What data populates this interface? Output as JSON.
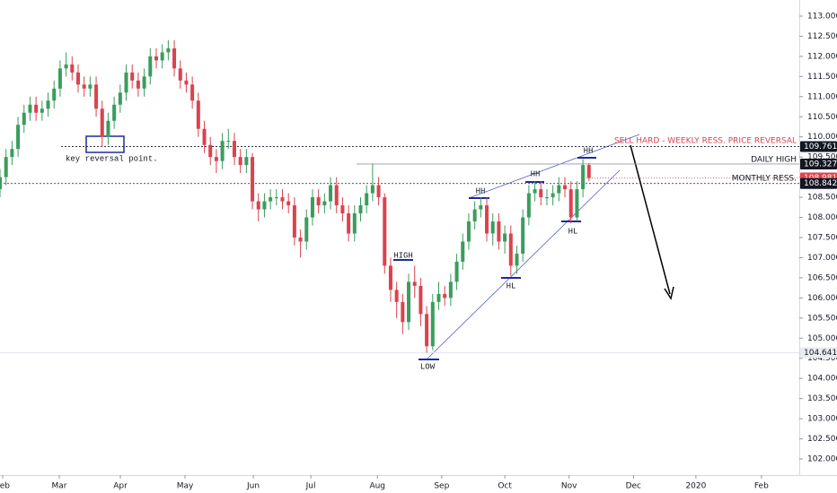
{
  "chart_data": {
    "type": "candlestick",
    "up_color": "#3a9d5d",
    "down_color": "#d9434f",
    "xlim": [
      0,
      133
    ],
    "xticks": [
      {
        "value": 0.45,
        "label": "Feb"
      },
      {
        "value": 9.86,
        "label": "Mar"
      },
      {
        "value": 20.03,
        "label": "Apr"
      },
      {
        "value": 30.79,
        "label": "May"
      },
      {
        "value": 42.15,
        "label": "Jun"
      },
      {
        "value": 51.72,
        "label": "Jul"
      },
      {
        "value": 62.8,
        "label": "Aug"
      },
      {
        "value": 73.5,
        "label": "Sep"
      },
      {
        "value": 84.0,
        "label": "Oct"
      },
      {
        "value": 94.7,
        "label": "Nov"
      },
      {
        "value": 105.4,
        "label": "Dec"
      },
      {
        "value": 115.8,
        "label": "2020"
      },
      {
        "value": 126.7,
        "label": "Feb"
      }
    ],
    "ylim": [
      101.6,
      113.4
    ],
    "yticks": [
      {
        "value": 102,
        "label": "102.000"
      },
      {
        "value": 102.5,
        "label": "102.500"
      },
      {
        "value": 103,
        "label": "103.000"
      },
      {
        "value": 103.5,
        "label": "103.500"
      },
      {
        "value": 104,
        "label": "104.000"
      },
      {
        "value": 104.5,
        "label": "104.500"
      },
      {
        "value": 105,
        "label": "105.000"
      },
      {
        "value": 105.5,
        "label": "105.500"
      },
      {
        "value": 106,
        "label": "106.000"
      },
      {
        "value": 106.5,
        "label": "106.500"
      },
      {
        "value": 107,
        "label": "107.000"
      },
      {
        "value": 107.5,
        "label": "107.500"
      },
      {
        "value": 108,
        "label": "108.000"
      },
      {
        "value": 108.5,
        "label": "108.500"
      },
      {
        "value": 109,
        "label": "109.000"
      },
      {
        "value": 109.5,
        "label": "109.500"
      },
      {
        "value": 110,
        "label": "110.000"
      },
      {
        "value": 110.5,
        "label": "110.500"
      },
      {
        "value": 111,
        "label": "111.000"
      },
      {
        "value": 111.5,
        "label": "111.500"
      },
      {
        "value": 112,
        "label": "112.000"
      },
      {
        "value": 112.5,
        "label": "112.500"
      },
      {
        "value": 113,
        "label": "113.000"
      }
    ],
    "open": [
      108.7,
      109.0,
      109.5,
      109.7,
      110.3,
      110.6,
      110.8,
      110.6,
      110.7,
      110.9,
      111.2,
      111.7,
      111.8,
      111.6,
      111.3,
      111.2,
      111.3,
      110.7,
      110.0,
      110.4,
      110.8,
      111.1,
      111.6,
      111.4,
      111.2,
      111.5,
      112.0,
      111.9,
      112.1,
      112.2,
      111.7,
      111.4,
      111.3,
      110.9,
      110.2,
      109.8,
      109.5,
      109.4,
      109.9,
      109.9,
      109.5,
      109.3,
      109.5,
      108.4,
      108.2,
      108.4,
      108.5,
      108.5,
      108.4,
      108.3,
      107.5,
      107.4,
      108.0,
      108.5,
      108.3,
      108.4,
      108.8,
      108.3,
      108.1,
      107.6,
      108.1,
      108.3,
      108.6,
      108.8,
      108.5,
      106.8,
      106.2,
      105.9,
      105.4,
      106.4,
      106.3,
      105.6,
      104.8,
      105.9,
      106.1,
      106.0,
      106.4,
      106.9,
      107.4,
      107.9,
      108.2,
      108.3,
      107.6,
      107.9,
      107.4,
      107.6,
      106.8,
      107.1,
      108.0,
      108.6,
      108.7,
      108.5,
      108.5,
      108.6,
      108.8,
      108.7,
      108.0,
      108.7,
      109.3
    ],
    "high": [
      109.2,
      109.7,
      109.9,
      110.5,
      110.8,
      111.0,
      111.0,
      110.9,
      111.1,
      111.4,
      111.9,
      112.1,
      112.0,
      111.8,
      111.5,
      111.5,
      111.5,
      110.9,
      110.6,
      111.0,
      111.3,
      111.8,
      111.8,
      111.6,
      111.7,
      112.2,
      112.2,
      112.3,
      112.4,
      112.4,
      111.9,
      111.6,
      111.5,
      111.1,
      110.4,
      110.0,
      109.7,
      110.1,
      110.2,
      110.1,
      109.7,
      109.7,
      109.6,
      108.6,
      108.6,
      108.7,
      108.7,
      108.7,
      108.6,
      108.5,
      107.7,
      108.2,
      108.7,
      108.7,
      108.6,
      109.0,
      109.0,
      108.5,
      108.3,
      108.3,
      108.5,
      108.8,
      109.33,
      109.0,
      108.6,
      107.0,
      106.4,
      106.1,
      106.6,
      106.8,
      106.5,
      105.8,
      106.1,
      106.4,
      106.3,
      106.6,
      107.1,
      107.6,
      108.1,
      108.4,
      108.5,
      108.5,
      108.1,
      108.1,
      107.8,
      107.8,
      107.3,
      108.2,
      108.8,
      108.9,
      108.9,
      108.7,
      108.8,
      109.0,
      109.0,
      108.9,
      108.9,
      109.45,
      109.35
    ],
    "low": [
      108.5,
      108.8,
      109.3,
      109.5,
      110.1,
      110.4,
      110.4,
      110.4,
      110.5,
      110.7,
      111.0,
      111.5,
      111.4,
      111.1,
      111.0,
      111.0,
      110.5,
      109.75,
      109.8,
      110.2,
      110.6,
      110.9,
      111.2,
      111.0,
      111.0,
      111.3,
      111.7,
      111.7,
      111.9,
      111.5,
      111.2,
      111.1,
      110.7,
      110.0,
      109.6,
      109.3,
      109.1,
      109.2,
      109.7,
      109.3,
      109.1,
      109.1,
      108.2,
      107.9,
      108.0,
      108.2,
      108.3,
      108.2,
      108.1,
      107.3,
      107.0,
      107.2,
      107.8,
      108.1,
      108.1,
      108.2,
      108.1,
      107.9,
      107.4,
      107.4,
      107.9,
      108.1,
      108.4,
      108.3,
      106.6,
      105.9,
      105.5,
      105.1,
      105.2,
      106.0,
      105.3,
      104.64,
      104.7,
      105.7,
      105.8,
      105.8,
      106.2,
      106.7,
      107.2,
      107.7,
      108.0,
      107.4,
      107.3,
      107.2,
      107.1,
      106.55,
      106.6,
      106.9,
      107.8,
      108.4,
      108.3,
      108.3,
      108.3,
      108.4,
      108.5,
      107.85,
      107.9,
      108.5,
      108.9
    ],
    "close": [
      109.0,
      109.5,
      109.7,
      110.3,
      110.6,
      110.8,
      110.6,
      110.7,
      110.9,
      111.2,
      111.7,
      111.8,
      111.6,
      111.3,
      111.2,
      111.3,
      110.7,
      110.0,
      110.4,
      110.8,
      111.1,
      111.6,
      111.4,
      111.2,
      111.5,
      112.0,
      111.9,
      112.1,
      112.2,
      111.7,
      111.4,
      111.3,
      110.9,
      110.2,
      109.8,
      109.5,
      109.4,
      109.9,
      109.9,
      109.5,
      109.3,
      109.5,
      108.4,
      108.2,
      108.4,
      108.5,
      108.5,
      108.4,
      108.3,
      107.5,
      107.4,
      108.0,
      108.5,
      108.3,
      108.4,
      108.8,
      108.3,
      108.1,
      107.6,
      108.1,
      108.3,
      108.6,
      108.8,
      108.5,
      106.8,
      106.2,
      105.9,
      105.4,
      106.4,
      106.3,
      105.6,
      104.8,
      105.9,
      106.1,
      106.0,
      106.4,
      106.9,
      107.4,
      107.9,
      108.2,
      108.3,
      107.6,
      107.9,
      107.4,
      107.6,
      106.8,
      107.1,
      108.0,
      108.6,
      108.7,
      108.5,
      108.5,
      108.6,
      108.8,
      108.7,
      108.0,
      108.7,
      109.3,
      108.98
    ],
    "price_levels": [
      109.761,
      109.327,
      108.981,
      108.842,
      104.641
    ],
    "annotations": [
      "SELL HARD - WEEKLY RESS. PRICE REVERSAL",
      "DAILY HIGH",
      "MONTHLY RESS.",
      "key reversal point.",
      "HH",
      "HH",
      "HH",
      "HIGH",
      "HL",
      "HL",
      "LOW"
    ]
  }
}
